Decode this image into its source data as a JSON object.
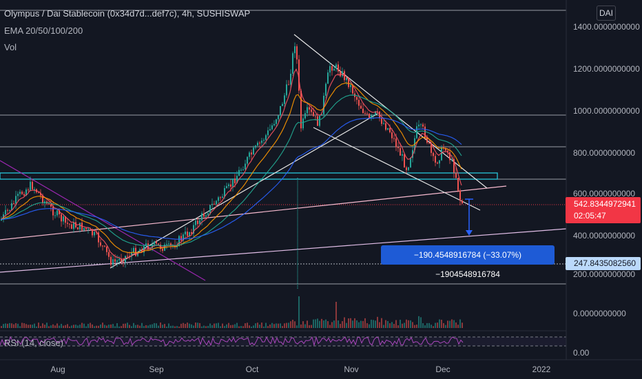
{
  "legend": {
    "symbol": "Olympus / Dai Stablecoin (0x34d7d...def7c), 4h, SUSHISWAP",
    "ema": "EMA 20/50/100/200",
    "volume": "Vol"
  },
  "currency_badge": "DAI",
  "price_axis": {
    "labels": [
      "1400.0000000000",
      "1200.0000000000",
      "1000.0000000000",
      "800.0000000000",
      "600.0000000000",
      "400.0000000000",
      "200.0000000000",
      "0.0000000000"
    ],
    "rsi_label": "0.00"
  },
  "current_price": {
    "value": "542.8344972941",
    "countdown": "02:05:47"
  },
  "target_level": "247.8435082560",
  "measure_label": "−190.4548916784 (−33.07%) −1904548916784",
  "rsi_legend": "RSI (14, close)",
  "time_axis": [
    "Aug",
    "Sep",
    "Oct",
    "Nov",
    "Dec",
    "2022"
  ],
  "colors": {
    "background": "#131722",
    "candle_up": "#26a69a",
    "candle_down": "#ef5350",
    "ema20": "#f7525f",
    "ema50": "#ff9800",
    "ema100": "#22ab94",
    "ema200": "#2962ff",
    "rsi": "#7e57c2",
    "price_tag": "#f23645",
    "level_tag": "#bbd9fb",
    "measure": "#1e5bd6"
  }
}
